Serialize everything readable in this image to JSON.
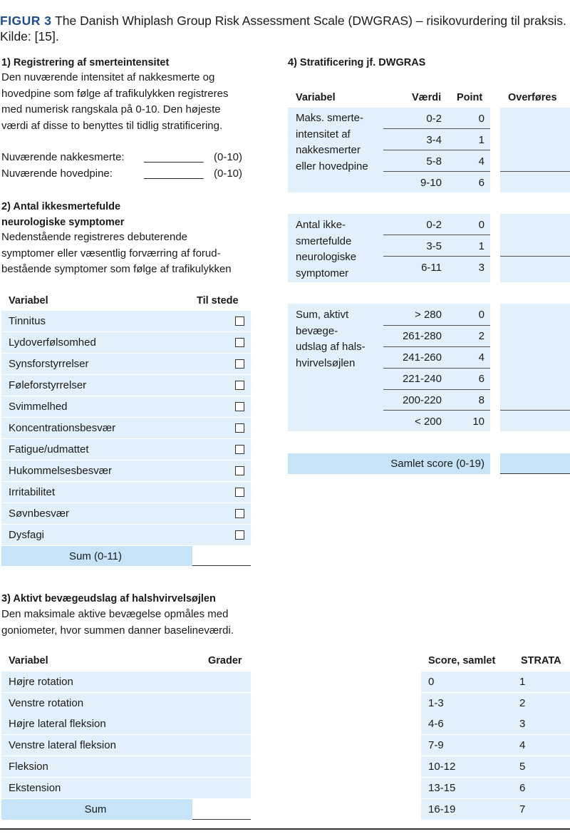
{
  "caption": {
    "figur_label": "FIGUR 3",
    "text": " The Danish Whiplash Group Risk Assessment Scale (DWGRAS) – risikovurdering til praksis. Kilde: [15]."
  },
  "section1": {
    "heading": "1) Registrering af smerteintensitet",
    "lines": [
      "Den nuværende intensitet af nakkesmerte og",
      "hovedpine som følge af trafikulykken registreres",
      "med numerisk rangskala på 0-10. Den højeste",
      "værdi af disse to benyttes til tidlig stratificering."
    ],
    "fields": [
      {
        "label": "Nuværende nakkesmerte:",
        "blank": "__________",
        "range": "(0-10)"
      },
      {
        "label": "Nuværende hovedpine:",
        "blank": "__________",
        "range": "(0-10)"
      }
    ]
  },
  "section2": {
    "heading_line1": "2) Antal ikkesmertefulde",
    "heading_line2": "neurologiske symptomer",
    "lines": [
      "Nedenstående registreres debuterende",
      "symptomer eller væsentlig forværring af forud-",
      "bestående symptomer som følge af trafikulykken"
    ],
    "col_variable": "Variabel",
    "col_present": "Til stede",
    "rows": [
      "Tinnitus",
      "Lydoverfølsomhed",
      "Synsforstyrrelser",
      "Føleforstyrrelser",
      "Svimmelhed",
      "Koncentrationsbesvær",
      "Fatigue/udmattet",
      "Hukommelsesbesvær",
      "Irritabilitet",
      "Søvnbesvær",
      "Dysfagi"
    ],
    "sum_label": "Sum (0-11)"
  },
  "section3": {
    "heading": "3) Aktivt bevægeudslag af halshvirvelsøjlen",
    "lines": [
      "Den maksimale aktive bevægelse opmåles med",
      "goniometer, hvor summen danner baselineværdi."
    ],
    "col_variable": "Variabel",
    "col_degrees": "Grader",
    "rows": [
      "Højre rotation",
      "Venstre rotation",
      "Højre lateral fleksion",
      "Venstre lateral fleksion",
      "Fleksion",
      "Ekstension"
    ],
    "sum_label": "Sum"
  },
  "section4": {
    "heading": "4) Stratificering jf. DWGRAS",
    "col_variable": "Variabel",
    "col_value": "Værdi",
    "col_point": "Point",
    "col_transfer": "Overføres",
    "groups": [
      {
        "label_lines": [
          "Maks. smerte-",
          "intensitet af",
          "nakkesmerter",
          "eller hovedpine"
        ],
        "rows": [
          {
            "value": "0-2",
            "point": "0"
          },
          {
            "value": "3-4",
            "point": "1"
          },
          {
            "value": "5-8",
            "point": "4"
          },
          {
            "value": "9-10",
            "point": "6"
          }
        ]
      },
      {
        "label_lines": [
          "Antal ikke-",
          "smertefulde",
          "neurologiske",
          "symptomer"
        ],
        "rows": [
          {
            "value": "0-2",
            "point": "0"
          },
          {
            "value": "3-5",
            "point": "1"
          },
          {
            "value": "6-11",
            "point": "3"
          }
        ]
      },
      {
        "label_lines": [
          "Sum, aktivt",
          "bevæge-",
          "udslag af hals-",
          "hvirvelsøjlen"
        ],
        "rows": [
          {
            "value": "> 280",
            "point": "0"
          },
          {
            "value": "261-280",
            "point": "2"
          },
          {
            "value": "241-260",
            "point": "4"
          },
          {
            "value": "221-240",
            "point": "6"
          },
          {
            "value": "200-220",
            "point": "8"
          },
          {
            "value": "< 200",
            "point": "10"
          }
        ]
      }
    ],
    "total_label": "Samlet score (0-19)"
  },
  "strata": {
    "col_score": "Score, samlet",
    "col_strata": "STRATA",
    "rows": [
      {
        "score": "0",
        "strata": "1"
      },
      {
        "score": "1-3",
        "strata": "2"
      },
      {
        "score": "4-6",
        "strata": "3"
      },
      {
        "score": "7-9",
        "strata": "4"
      },
      {
        "score": "10-12",
        "strata": "5"
      },
      {
        "score": "13-15",
        "strata": "6"
      },
      {
        "score": "16-19",
        "strata": "7"
      }
    ]
  },
  "colors": {
    "accent": "#1f4e8c",
    "row_light": "#e2f0fb",
    "row_mid": "#c7e3f7"
  }
}
